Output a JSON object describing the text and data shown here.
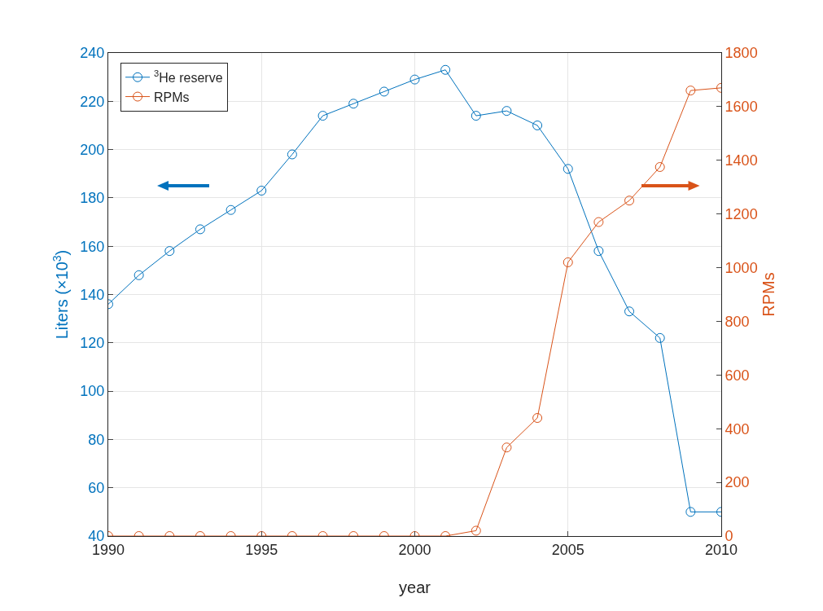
{
  "chart_data": {
    "type": "line",
    "xlabel": "year",
    "ylabel": "Liters (×10$^{3}$)",
    "y2label": "RPMs",
    "x": [
      1990,
      1991,
      1992,
      1993,
      1994,
      1995,
      1996,
      1997,
      1998,
      1999,
      2000,
      2001,
      2002,
      2003,
      2004,
      2005,
      2006,
      2007,
      2008,
      2009,
      2010
    ],
    "series": [
      {
        "name": "$^{3}$He reserve",
        "color": "#0072bd",
        "values": [
          136,
          148,
          158,
          167,
          175,
          183,
          198,
          214,
          219,
          224,
          229,
          233,
          214,
          216,
          210,
          192,
          158,
          133,
          122,
          50,
          50
        ]
      },
      {
        "name": "RPMs",
        "color": "#d95319",
        "axis": "y2",
        "values": [
          0,
          0,
          0,
          0,
          0,
          0,
          0,
          0,
          0,
          0,
          0,
          0,
          20,
          330,
          440,
          1020,
          1170,
          1250,
          1375,
          1660,
          1670
        ]
      }
    ],
    "xlim": [
      1990,
      2010
    ],
    "xticks": [
      1990,
      1995,
      2000,
      2005,
      2010
    ],
    "ylim": [
      40,
      240
    ],
    "yticks": [
      40,
      60,
      80,
      100,
      120,
      140,
      160,
      180,
      200,
      220,
      240
    ],
    "y2lim": [
      0,
      1800
    ],
    "y2ticks": [
      0,
      200,
      400,
      600,
      800,
      1000,
      1200,
      1400,
      1600,
      1800
    ],
    "grid": true,
    "legend": "top left",
    "marker": "circle",
    "line_style": "solid"
  }
}
